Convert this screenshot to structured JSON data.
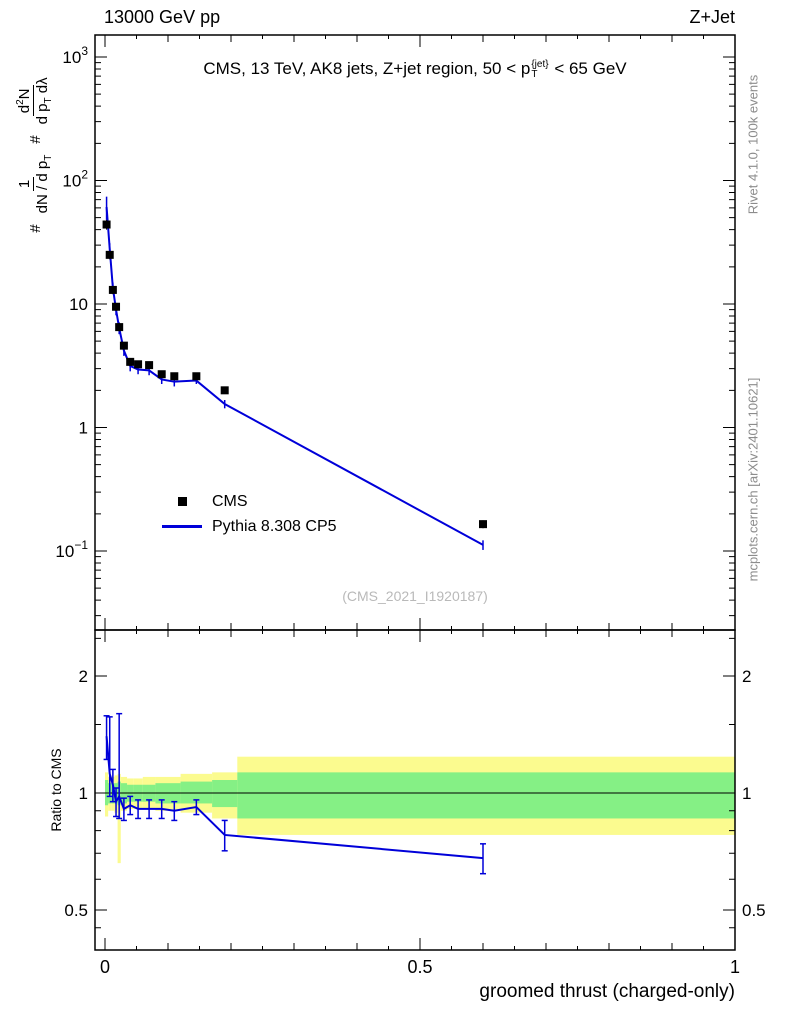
{
  "header": {
    "left": "13000 GeV pp",
    "right": "Z+Jet"
  },
  "side_texts": {
    "rivet": "Rivet 4.1.0,  100k events",
    "mcplots": "mcplots.cern.ch [arXiv:2401.10621]"
  },
  "title": {
    "pre": "CMS, 13 TeV, AK8 jets, Z+jet region, 50 < p",
    "sup": "{jet}",
    "sub": "T",
    "post": " < 65 GeV"
  },
  "ylabel": {
    "hash1": "#",
    "num1": "1",
    "den1_pre": "dN / d p",
    "den1_sub": "T",
    "hash2": "#",
    "num2_pre": "d",
    "num2_sup": "2",
    "num2_post": "N",
    "den2_pre": "d p",
    "den2_sub": "T",
    "den2_post": " dλ"
  },
  "ratio_ylabel": "Ratio to CMS",
  "xlabel": "groomed thrust (charged-only)",
  "watermark": "(CMS_2021_I1920187)",
  "legend": [
    {
      "label": "CMS",
      "type": "marker",
      "color": "#000000"
    },
    {
      "label": "Pythia 8.308 CP5",
      "type": "line",
      "color": "#0000d9"
    }
  ],
  "chart_data": {
    "type": "line",
    "title": "CMS, 13 TeV, AK8 jets, Z+jet region, 50 < pT{jet} < 65 GeV",
    "xlabel": "groomed thrust (charged-only)",
    "xlim": [
      -0.016,
      1.0
    ],
    "xticks": [
      0,
      0.5,
      1
    ],
    "xtick_labels": [
      "0",
      "0.5",
      "1"
    ],
    "colors": {
      "green": "#85f085",
      "yellow": "#fbfb8f",
      "line": "#0000d9",
      "marker": "#000000"
    },
    "main": {
      "yscale": "log",
      "ylim": [
        0.023,
        1500
      ],
      "yticks": [
        0.1,
        1,
        10,
        100,
        1000
      ],
      "series": [
        {
          "name": "CMS",
          "marker": "square",
          "color": "#000000",
          "x": [
            0.0025,
            0.0075,
            0.0125,
            0.0175,
            0.0225,
            0.03,
            0.04,
            0.0525,
            0.07,
            0.09,
            0.11,
            0.145,
            0.19,
            0.6
          ],
          "y": [
            44,
            25,
            13,
            9.5,
            6.5,
            4.6,
            3.4,
            3.25,
            3.2,
            2.7,
            2.6,
            2.6,
            2.0,
            0.165
          ],
          "yerr": [
            4,
            2,
            1,
            0.7,
            0.5,
            0.3,
            0.2,
            0.2,
            0.2,
            0.15,
            0.15,
            0.15,
            0.12,
            0.012
          ]
        },
        {
          "name": "Pythia 8.308 CP5",
          "marker": "none",
          "color": "#0000d9",
          "x": [
            0.0025,
            0.0075,
            0.0125,
            0.0175,
            0.0225,
            0.03,
            0.04,
            0.0525,
            0.07,
            0.09,
            0.11,
            0.145,
            0.19,
            0.6
          ],
          "y": [
            61,
            28,
            13.5,
            9.0,
            6.4,
            4.2,
            3.15,
            2.95,
            2.9,
            2.45,
            2.35,
            2.4,
            1.55,
            0.112
          ],
          "yerr": [
            13,
            3,
            1.4,
            0.9,
            0.7,
            0.4,
            0.3,
            0.25,
            0.25,
            0.2,
            0.2,
            0.15,
            0.12,
            0.01
          ]
        }
      ]
    },
    "ratio": {
      "yscale": "log",
      "ylim": [
        0.41,
        2.63
      ],
      "yticks": [
        0.5,
        1,
        2
      ],
      "ytick_labels": [
        "0.5",
        "1",
        "2"
      ],
      "yminor": [
        0.45,
        0.6,
        0.7,
        0.8,
        0.9,
        1.5,
        2.5
      ],
      "reference": 1,
      "bands": [
        {
          "xlo": 0.0,
          "xhi": 0.005,
          "green": [
            0.93,
            1.08
          ],
          "yellow": [
            0.87,
            1.13
          ]
        },
        {
          "xlo": 0.005,
          "xhi": 0.01,
          "green": [
            0.94,
            1.06
          ],
          "yellow": [
            0.9,
            1.1
          ]
        },
        {
          "xlo": 0.01,
          "xhi": 0.015,
          "green": [
            0.94,
            1.06
          ],
          "yellow": [
            0.9,
            1.1
          ]
        },
        {
          "xlo": 0.015,
          "xhi": 0.02,
          "green": [
            0.94,
            1.06
          ],
          "yellow": [
            0.89,
            1.11
          ]
        },
        {
          "xlo": 0.02,
          "xhi": 0.025,
          "green": [
            0.93,
            1.07
          ],
          "yellow": [
            0.66,
            1.12
          ]
        },
        {
          "xlo": 0.025,
          "xhi": 0.035,
          "green": [
            0.94,
            1.06
          ],
          "yellow": [
            0.9,
            1.1
          ]
        },
        {
          "xlo": 0.035,
          "xhi": 0.045,
          "green": [
            0.95,
            1.05
          ],
          "yellow": [
            0.91,
            1.09
          ]
        },
        {
          "xlo": 0.045,
          "xhi": 0.06,
          "green": [
            0.95,
            1.05
          ],
          "yellow": [
            0.91,
            1.09
          ]
        },
        {
          "xlo": 0.06,
          "xhi": 0.08,
          "green": [
            0.95,
            1.05
          ],
          "yellow": [
            0.91,
            1.1
          ]
        },
        {
          "xlo": 0.08,
          "xhi": 0.1,
          "green": [
            0.94,
            1.06
          ],
          "yellow": [
            0.9,
            1.1
          ]
        },
        {
          "xlo": 0.1,
          "xhi": 0.12,
          "green": [
            0.94,
            1.06
          ],
          "yellow": [
            0.9,
            1.1
          ]
        },
        {
          "xlo": 0.12,
          "xhi": 0.17,
          "green": [
            0.94,
            1.07
          ],
          "yellow": [
            0.89,
            1.12
          ]
        },
        {
          "xlo": 0.17,
          "xhi": 0.21,
          "green": [
            0.92,
            1.08
          ],
          "yellow": [
            0.86,
            1.13
          ]
        },
        {
          "xlo": 0.21,
          "xhi": 1.0,
          "green": [
            0.86,
            1.13
          ],
          "yellow": [
            0.78,
            1.24
          ]
        }
      ],
      "series": {
        "name": "Pythia 8.308 CP5 / CMS",
        "color": "#0000d9",
        "x": [
          0.0025,
          0.0075,
          0.0125,
          0.0175,
          0.0225,
          0.03,
          0.04,
          0.0525,
          0.07,
          0.09,
          0.11,
          0.145,
          0.19,
          0.6
        ],
        "y": [
          1.4,
          1.12,
          1.05,
          0.95,
          0.98,
          0.91,
          0.93,
          0.91,
          0.91,
          0.91,
          0.9,
          0.92,
          0.78,
          0.68
        ],
        "elo": [
          0.18,
          0.14,
          0.1,
          0.08,
          0.12,
          0.06,
          0.05,
          0.05,
          0.05,
          0.05,
          0.05,
          0.04,
          0.07,
          0.06
        ],
        "ehi": [
          0.18,
          0.45,
          0.1,
          0.08,
          0.62,
          0.06,
          0.05,
          0.05,
          0.05,
          0.05,
          0.05,
          0.04,
          0.07,
          0.06
        ]
      }
    }
  }
}
